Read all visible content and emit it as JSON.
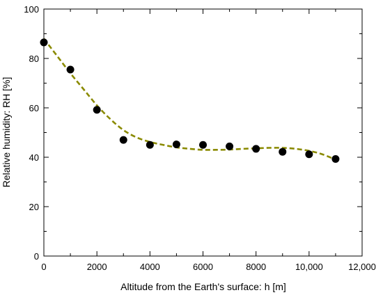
{
  "chart_data": {
    "type": "scatter",
    "xlabel": "Altitude from the Earth's surface: h [m]",
    "ylabel": "Relative humidity: RH [%]",
    "xlim": [
      0,
      12000
    ],
    "ylim": [
      0,
      100
    ],
    "x_ticks": [
      0,
      2000,
      4000,
      6000,
      8000,
      10000,
      12000
    ],
    "x_tick_labels": [
      "0",
      "2000",
      "4000",
      "6000",
      "8000",
      "10,000",
      "12,000"
    ],
    "y_ticks": [
      0,
      20,
      40,
      60,
      80,
      100
    ],
    "y_tick_labels": [
      "0",
      "20",
      "40",
      "60",
      "80",
      "100"
    ],
    "grid": false,
    "series": [
      {
        "type": "scatter",
        "marker_color": "#000000",
        "x": [
          0,
          1000,
          2000,
          3000,
          4000,
          5000,
          6000,
          7000,
          8000,
          9000,
          10000,
          11000
        ],
        "y": [
          86.5,
          75.5,
          59.2,
          47.0,
          45.0,
          45.2,
          45.0,
          44.4,
          43.4,
          42.2,
          41.2,
          39.3
        ]
      },
      {
        "type": "line",
        "style": "dashed",
        "color": "#8a8a00",
        "x": [
          0,
          500,
          1000,
          1500,
          2000,
          2500,
          3000,
          3500,
          4000,
          4500,
          5000,
          5500,
          6000,
          6500,
          7000,
          7500,
          8000,
          8500,
          9000,
          9500,
          10000,
          10500,
          11000
        ],
        "y": [
          88.0,
          81.0,
          74.0,
          67.5,
          61.0,
          55.5,
          51.0,
          48.0,
          46.2,
          45.0,
          44.0,
          43.4,
          43.0,
          43.0,
          43.1,
          43.4,
          43.6,
          43.8,
          43.8,
          43.4,
          42.6,
          41.2,
          39.0
        ]
      }
    ]
  }
}
